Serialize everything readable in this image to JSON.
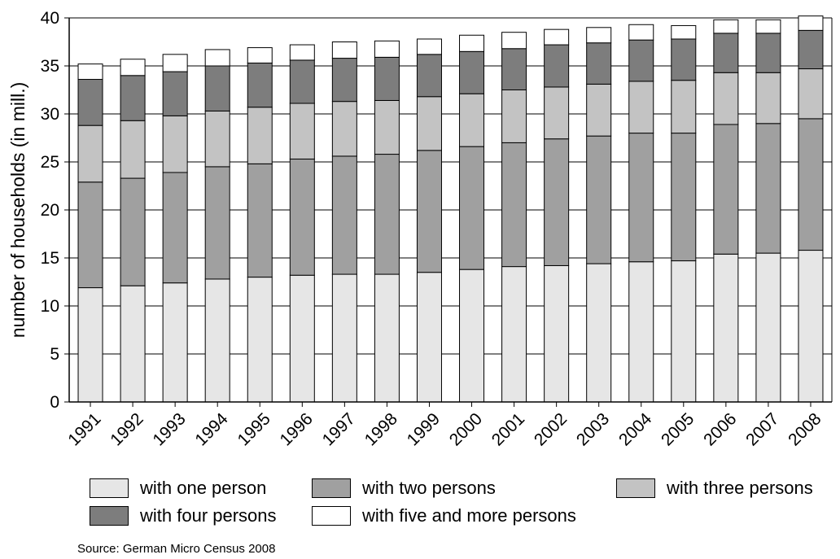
{
  "chart_data": {
    "type": "bar",
    "stacked": true,
    "title": "",
    "xlabel": "",
    "ylabel": "number of households (in mill.)",
    "ylim": [
      0,
      40
    ],
    "yticks": [
      0,
      5,
      10,
      15,
      20,
      25,
      30,
      35,
      40
    ],
    "grid": true,
    "legend_position": "bottom",
    "categories": [
      "1991",
      "1992",
      "1993",
      "1994",
      "1995",
      "1996",
      "1997",
      "1998",
      "1999",
      "2000",
      "2001",
      "2002",
      "2003",
      "2004",
      "2005",
      "2006",
      "2007",
      "2008"
    ],
    "series": [
      {
        "name": "with one person",
        "color": "#e6e6e6",
        "values": [
          11.9,
          12.1,
          12.4,
          12.8,
          13.0,
          13.2,
          13.3,
          13.3,
          13.5,
          13.8,
          14.1,
          14.2,
          14.4,
          14.6,
          14.7,
          15.4,
          15.5,
          15.8
        ]
      },
      {
        "name": "with two persons",
        "color": "#a0a0a0",
        "values": [
          11.0,
          11.2,
          11.5,
          11.7,
          11.8,
          12.1,
          12.3,
          12.5,
          12.7,
          12.8,
          12.9,
          13.2,
          13.3,
          13.4,
          13.3,
          13.5,
          13.5,
          13.7
        ]
      },
      {
        "name": "with three persons",
        "color": "#c3c3c3",
        "values": [
          5.9,
          6.0,
          5.9,
          5.8,
          5.9,
          5.8,
          5.7,
          5.6,
          5.6,
          5.5,
          5.5,
          5.4,
          5.4,
          5.4,
          5.5,
          5.4,
          5.3,
          5.2
        ]
      },
      {
        "name": "with four persons",
        "color": "#7d7d7d",
        "values": [
          4.8,
          4.7,
          4.6,
          4.7,
          4.6,
          4.5,
          4.5,
          4.5,
          4.4,
          4.4,
          4.3,
          4.4,
          4.3,
          4.3,
          4.3,
          4.1,
          4.1,
          4.0
        ]
      },
      {
        "name": "with five and more persons",
        "color": "#ffffff",
        "values": [
          1.6,
          1.7,
          1.8,
          1.7,
          1.6,
          1.6,
          1.7,
          1.7,
          1.6,
          1.7,
          1.7,
          1.6,
          1.6,
          1.6,
          1.4,
          1.4,
          1.4,
          1.5
        ]
      }
    ]
  },
  "legend": {
    "items": [
      {
        "label": "with one person",
        "color": "#e6e6e6"
      },
      {
        "label": "with two persons",
        "color": "#a0a0a0"
      },
      {
        "label": "with three persons",
        "color": "#c3c3c3"
      },
      {
        "label": "with four persons",
        "color": "#7d7d7d"
      },
      {
        "label": "with five and more persons",
        "color": "#ffffff"
      }
    ]
  },
  "source": "Source: German Micro Census 2008"
}
